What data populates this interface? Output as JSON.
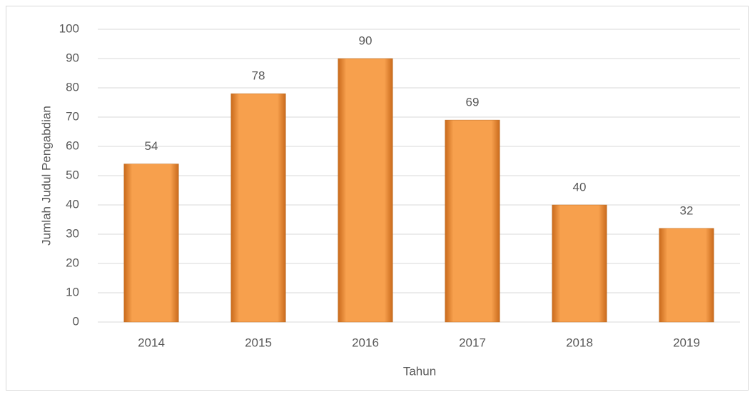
{
  "chart_data": {
    "type": "bar",
    "categories": [
      "2014",
      "2015",
      "2016",
      "2017",
      "2018",
      "2019"
    ],
    "values": [
      54,
      78,
      90,
      69,
      40,
      32
    ],
    "color": "#f7a04d",
    "xlabel": "Tahun",
    "ylabel": "Jumlah Judul Pengabdian",
    "ylim": [
      0,
      100
    ],
    "yticks": [
      0,
      10,
      20,
      30,
      40,
      50,
      60,
      70,
      80,
      90,
      100
    ],
    "grid": true
  }
}
